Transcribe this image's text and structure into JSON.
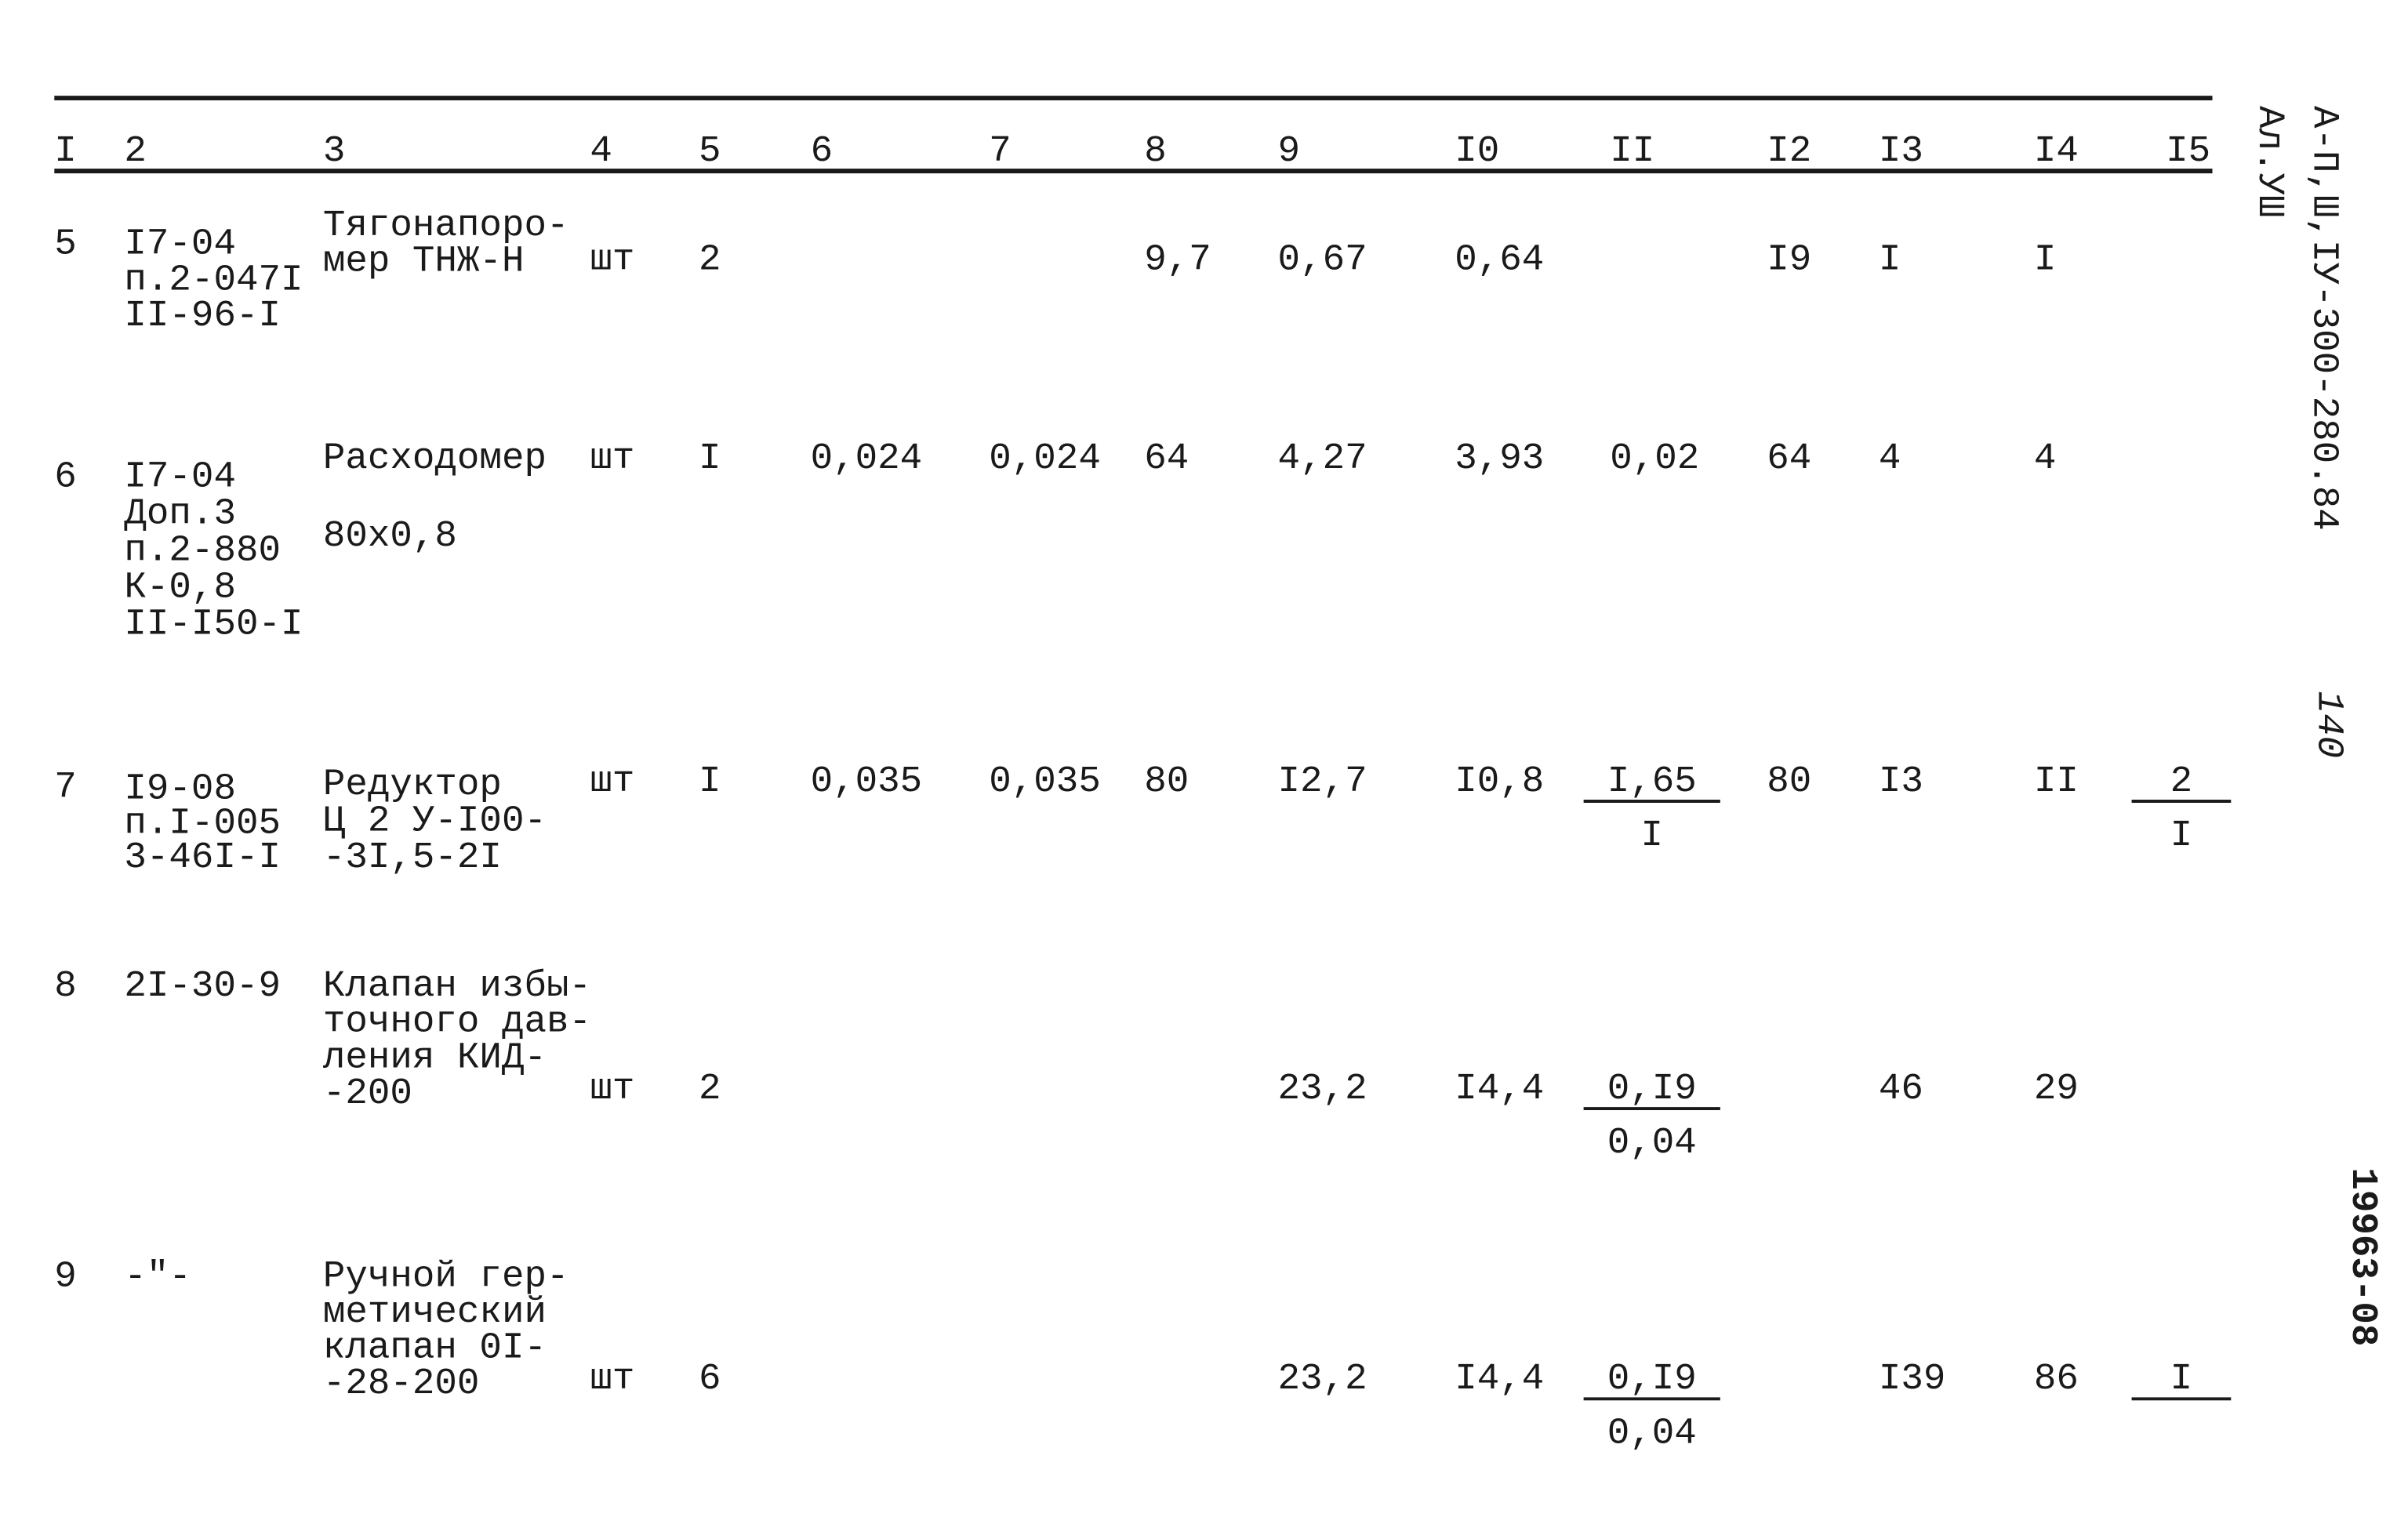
{
  "header": [
    "I",
    "2",
    "3",
    "4",
    "5",
    "6",
    "7",
    "8",
    "9",
    "I0",
    "II",
    "I2",
    "I3",
    "I4",
    "I5"
  ],
  "rows": [
    [
      "5",
      [
        "I7-04",
        "п.2-047I",
        "II-96-I"
      ],
      [
        "Тягонапоро-",
        "мер ТНЖ-Н"
      ],
      "шт",
      "2",
      null,
      null,
      "9,7",
      "0,67",
      "0,64",
      null,
      "I9",
      "I",
      "I",
      null
    ],
    [
      "6",
      [
        "I7-04",
        "Доп.3",
        "п.2-880",
        "К-0,8",
        "II-I50-I"
      ],
      [
        "Расходомер",
        "80x0,8"
      ],
      "шт",
      "I",
      "0,024",
      "0,024",
      "64",
      "4,27",
      "3,93",
      "0,02",
      "64",
      "4",
      "4",
      null
    ],
    [
      "7",
      [
        "I9-08",
        "п.I-005",
        "3-46I-I"
      ],
      [
        "Редуктор",
        "Ц 2 У-I00-",
        "-3I,5-2I"
      ],
      "шт",
      "I",
      "0,035",
      "0,035",
      "80",
      "I2,7",
      "I0,8",
      {
        "num": "I,65",
        "den": "I"
      },
      "80",
      "I3",
      "II",
      {
        "num": "2",
        "den": "I"
      }
    ],
    [
      "8",
      "2I-30-9",
      [
        "Клапан избы-",
        "точного дав-",
        "ления КИД-",
        "-200"
      ],
      "шт",
      "2",
      null,
      null,
      null,
      "23,2",
      "I4,4",
      {
        "num": "0,I9",
        "den": "0,04"
      },
      null,
      "46",
      "29",
      null
    ],
    [
      "9",
      "-\"-",
      [
        "Ручной гер-",
        "метический",
        "клапан 0I-",
        "-28-200"
      ],
      "шт",
      "6",
      null,
      null,
      null,
      "23,2",
      "I4,4",
      {
        "num": "0,I9",
        "den": "0,04"
      },
      null,
      "I39",
      "86",
      {
        "num": "I"
      }
    ]
  ],
  "side": {
    "code": "А-П,Ш,IУ-300-280.84",
    "album": "Ал.УШ",
    "page": "140",
    "number": "19963-08"
  }
}
